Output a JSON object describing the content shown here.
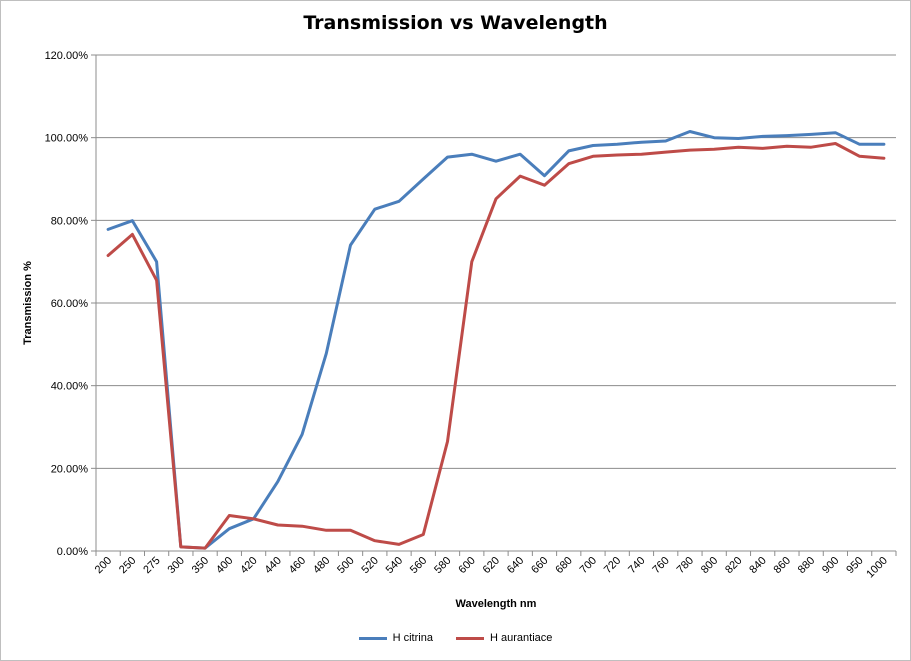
{
  "chart_data": {
    "type": "line",
    "title": "Transmission vs Wavelength",
    "xlabel": "Wavelength nm",
    "ylabel": "Transmission %",
    "ylim": [
      0,
      1.2
    ],
    "y_ticks": [
      "0.00%",
      "20.00%",
      "40.00%",
      "60.00%",
      "80.00%",
      "100.00%",
      "120.00%"
    ],
    "grid": true,
    "legend_position": "bottom",
    "categories": [
      "200",
      "250",
      "275",
      "300",
      "350",
      "400",
      "420",
      "440",
      "460",
      "480",
      "500",
      "520",
      "540",
      "560",
      "580",
      "600",
      "620",
      "640",
      "660",
      "680",
      "700",
      "720",
      "740",
      "760",
      "780",
      "800",
      "820",
      "840",
      "860",
      "880",
      "900",
      "950",
      "1000"
    ],
    "series": [
      {
        "name": "H citrina",
        "color": "#4a7ebb",
        "values": [
          0.778,
          0.799,
          0.7,
          0.01,
          0.007,
          0.054,
          0.078,
          0.168,
          0.282,
          0.478,
          0.74,
          0.827,
          0.846,
          0.9,
          0.953,
          0.96,
          0.943,
          0.96,
          0.908,
          0.968,
          0.981,
          0.984,
          0.989,
          0.992,
          1.015,
          1.0,
          0.998,
          1.003,
          1.005,
          1.008,
          1.012,
          0.984,
          0.984
        ]
      },
      {
        "name": "H aurantiace",
        "color": "#be4b48",
        "values": [
          0.715,
          0.766,
          0.655,
          0.01,
          0.007,
          0.086,
          0.078,
          0.063,
          0.06,
          0.05,
          0.05,
          0.025,
          0.016,
          0.04,
          0.265,
          0.7,
          0.852,
          0.907,
          0.885,
          0.937,
          0.955,
          0.958,
          0.96,
          0.965,
          0.97,
          0.972,
          0.977,
          0.974,
          0.979,
          0.977,
          0.986,
          0.955,
          0.95
        ]
      }
    ]
  }
}
